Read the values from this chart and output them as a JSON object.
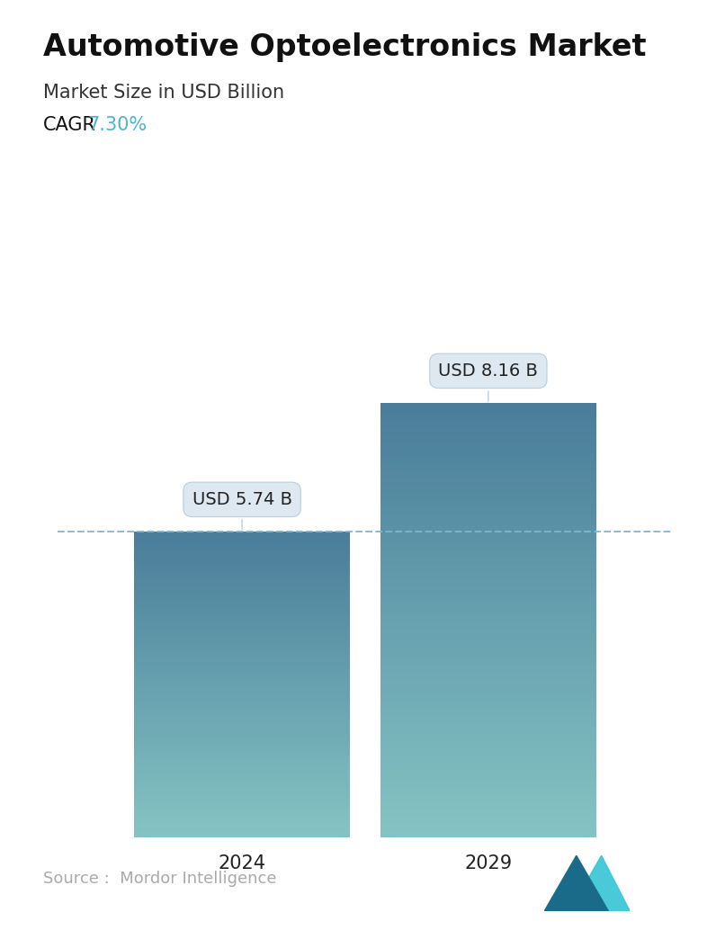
{
  "title": "Automotive Optoelectronics Market",
  "subtitle": "Market Size in USD Billion",
  "cagr_label": "CAGR",
  "cagr_value": "7.30%",
  "cagr_color": "#4db3d4",
  "categories": [
    "2024",
    "2029"
  ],
  "values": [
    5.74,
    8.16
  ],
  "bar_labels": [
    "USD 5.74 B",
    "USD 8.16 B"
  ],
  "bar_color_top": "#4a7d9a",
  "bar_color_bottom": "#85c4c4",
  "dashed_line_color": "#7ab8d0",
  "dashed_line_value": 5.74,
  "source_text": "Source :  Mordor Intelligence",
  "source_color": "#aaaaaa",
  "bg_color": "#ffffff",
  "title_fontsize": 24,
  "subtitle_fontsize": 15,
  "cagr_fontsize": 15,
  "tick_fontsize": 15,
  "label_fontsize": 14,
  "ylim": [
    0,
    10.5
  ],
  "bar_width": 0.35
}
